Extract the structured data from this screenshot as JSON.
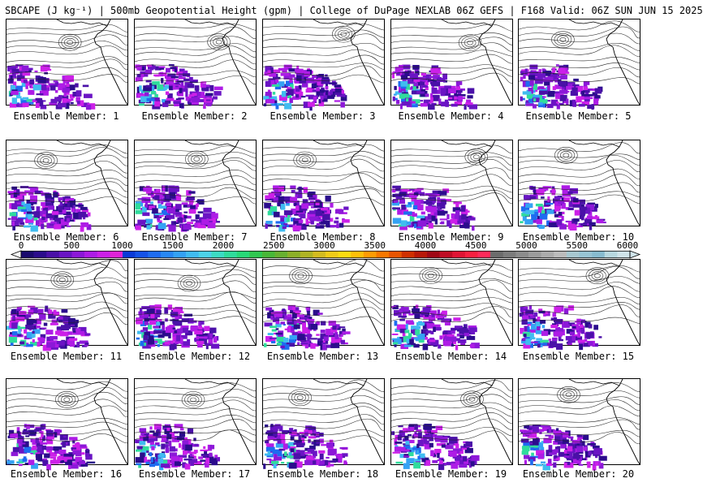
{
  "title": "SBCAPE (J kg⁻¹) | 500mb Geopotential Height (gpm) | College of DuPage NEXLAB 06Z GEFS | F168 Valid: 06Z SUN JUN 15 2025",
  "member_label_prefix": "Ensemble Member: ",
  "members": [
    {
      "label": "Ensemble Member: 1"
    },
    {
      "label": "Ensemble Member: 2"
    },
    {
      "label": "Ensemble Member: 3"
    },
    {
      "label": "Ensemble Member: 4"
    },
    {
      "label": "Ensemble Member: 5"
    },
    {
      "label": "Ensemble Member: 6"
    },
    {
      "label": "Ensemble Member: 7"
    },
    {
      "label": "Ensemble Member: 8"
    },
    {
      "label": "Ensemble Member: 9"
    },
    {
      "label": "Ensemble Member: 10"
    },
    {
      "label": "Ensemble Member: 11"
    },
    {
      "label": "Ensemble Member: 12"
    },
    {
      "label": "Ensemble Member: 13"
    },
    {
      "label": "Ensemble Member: 14"
    },
    {
      "label": "Ensemble Member: 15"
    },
    {
      "label": "Ensemble Member: 16"
    },
    {
      "label": "Ensemble Member: 17"
    },
    {
      "label": "Ensemble Member: 18"
    },
    {
      "label": "Ensemble Member: 19"
    },
    {
      "label": "Ensemble Member: 20"
    }
  ],
  "colorbar": {
    "ticks": [
      "0",
      "500",
      "1000",
      "1500",
      "2000",
      "2500",
      "3000",
      "3500",
      "4000",
      "4500",
      "5000",
      "5500",
      "6000"
    ],
    "colors": [
      "#1a0a6e",
      "#2b0c8c",
      "#4a10a8",
      "#6a14c4",
      "#8c18d8",
      "#ae1ce6",
      "#cc20e8",
      "#e024d8",
      "#0a3ad8",
      "#1452e8",
      "#1e6cf0",
      "#2888f4",
      "#34a2f4",
      "#40bcf0",
      "#4cd2e8",
      "#3cdcc4",
      "#30dc9c",
      "#28d878",
      "#30c850",
      "#48b838",
      "#68b030",
      "#8cb028",
      "#b0b424",
      "#d4bc20",
      "#f0cc18",
      "#fcdc10",
      "#ffc008",
      "#ff9c04",
      "#f87800",
      "#e85400",
      "#d03000",
      "#b81808",
      "#a00814",
      "#c00c24",
      "#e01434",
      "#f82040",
      "#ff2a5a",
      "#6c6c6c",
      "#7c7c7c",
      "#8c8c8c",
      "#9c9c9c",
      "#acacac",
      "#bcbcbc",
      "#a8c8d0",
      "#98c4d4",
      "#88bcd0",
      "#b8d8e0",
      "#d0e4ea"
    ]
  }
}
